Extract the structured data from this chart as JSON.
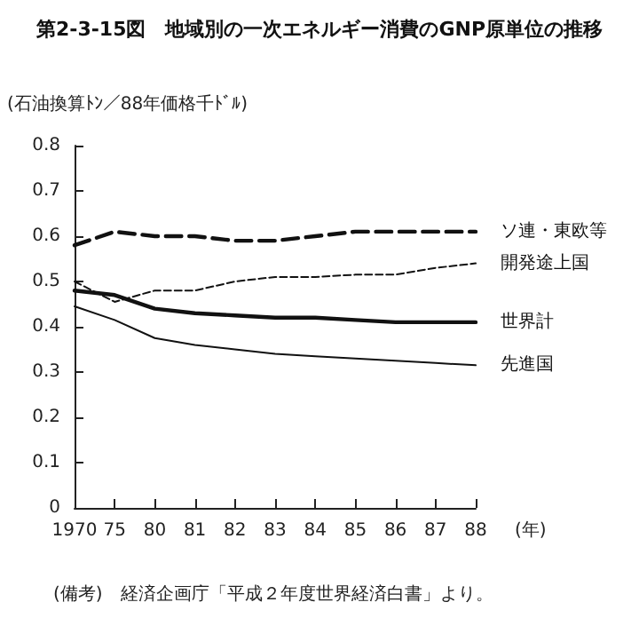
{
  "chart_data": {
    "type": "line",
    "title": "第2-3-15図　地域別の一次エネルギー消費のGNP原単位の推移",
    "ylabel": "(石油換算ﾄﾝ／88年価格千ﾄﾞﾙ)",
    "xlabel": "(年)",
    "annotations": [
      "(備考)　経済企画庁「平成２年度世界経済白書」より。"
    ],
    "categories": [
      "1970",
      "75",
      "80",
      "81",
      "82",
      "83",
      "84",
      "85",
      "86",
      "87",
      "88"
    ],
    "ylim": [
      0,
      0.8
    ],
    "yticks": [
      0,
      0.1,
      0.2,
      0.3,
      0.4,
      0.5,
      0.6,
      0.7,
      0.8
    ],
    "grid": false,
    "legend": false,
    "marker": "none",
    "series": [
      {
        "name": "ソ連・東欧等",
        "color": "#111111",
        "line_style": "dashed",
        "values": [
          0.58,
          0.61,
          0.6,
          0.6,
          0.59,
          0.59,
          0.6,
          0.61,
          0.61,
          0.61,
          0.61
        ]
      },
      {
        "name": "開発途上国",
        "color": "#111111",
        "line_style": "dashed",
        "values": [
          0.5,
          0.455,
          0.48,
          0.48,
          0.5,
          0.51,
          0.51,
          0.515,
          0.515,
          0.53,
          0.54
        ]
      },
      {
        "name": "世界計",
        "color": "#111111",
        "line_style": "solid",
        "values": [
          0.48,
          0.47,
          0.44,
          0.43,
          0.425,
          0.42,
          0.42,
          0.415,
          0.41,
          0.41,
          0.41
        ]
      },
      {
        "name": "先進国",
        "color": "#111111",
        "line_style": "solid",
        "values": [
          0.445,
          0.415,
          0.375,
          0.36,
          0.35,
          0.34,
          0.335,
          0.33,
          0.325,
          0.32,
          0.315
        ]
      }
    ]
  }
}
